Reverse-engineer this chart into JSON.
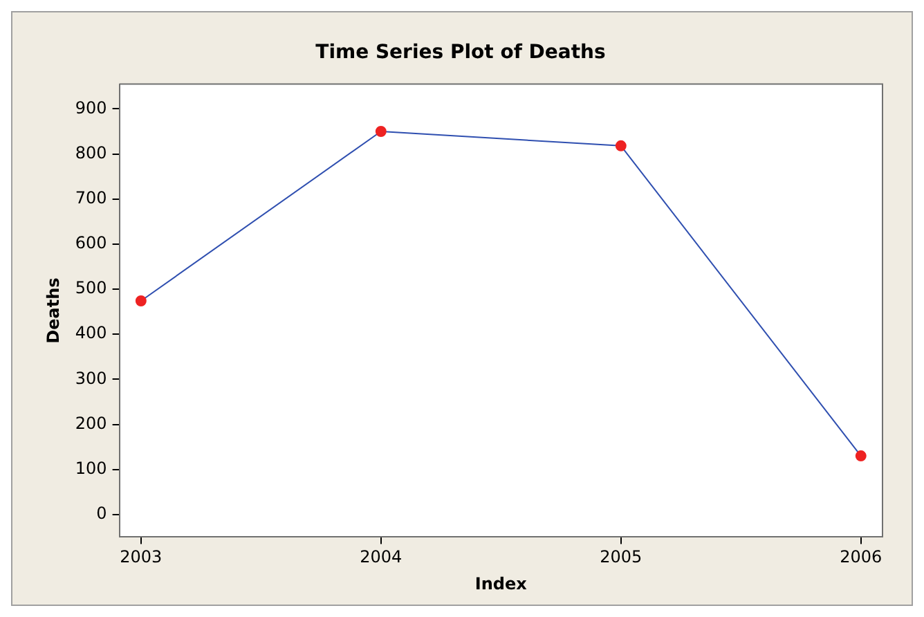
{
  "chart_data": {
    "type": "line",
    "title": "Time Series Plot of Deaths",
    "xlabel": "Index",
    "ylabel": "Deaths",
    "categories": [
      "2003",
      "2004",
      "2005",
      "2006"
    ],
    "series": [
      {
        "color": "#2f4fb0",
        "values": [
          474,
          850,
          818,
          130
        ]
      }
    ],
    "ylim": [
      -50,
      955
    ],
    "yticks": [
      0,
      100,
      200,
      300,
      400,
      500,
      600,
      700,
      800,
      900
    ],
    "grid": false,
    "legend": false,
    "marker": "circle",
    "line_style": "solid"
  }
}
